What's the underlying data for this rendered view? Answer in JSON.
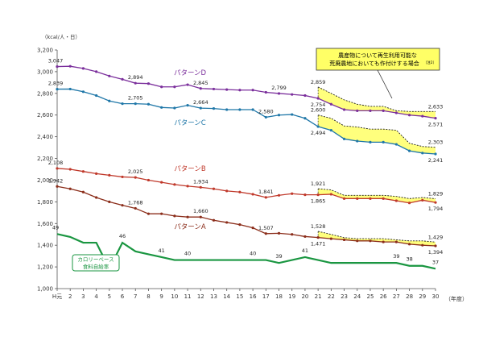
{
  "chart_data": {
    "type": "line",
    "y_unit_label": "（kcal/人・日）",
    "x_unit_label": "（年度）",
    "x": [
      "H元",
      "2",
      "3",
      "4",
      "5",
      "6",
      "7",
      "8",
      "9",
      "10",
      "11",
      "12",
      "13",
      "14",
      "15",
      "16",
      "17",
      "18",
      "19",
      "20",
      "21",
      "22",
      "23",
      "24",
      "25",
      "26",
      "27",
      "28",
      "29",
      "30"
    ],
    "ylim": [
      1000,
      3200
    ],
    "yticks": [
      1000,
      1200,
      1400,
      1600,
      1800,
      2000,
      2200,
      2400,
      2600,
      2800,
      3000,
      3200
    ],
    "ytick_labels": [
      "1,000",
      "1,200",
      "1,400",
      "1,600",
      "1,800",
      "2,000",
      "2,200",
      "2,400",
      "2,600",
      "2,800",
      "3,000",
      "3,200"
    ],
    "grid": false,
    "series": [
      {
        "name": "パターンD",
        "color": "#7b2f9c",
        "values": [
          3047,
          3050,
          3030,
          3000,
          2960,
          2930,
          2894,
          2890,
          2860,
          2860,
          2880,
          2845,
          2840,
          2835,
          2830,
          2830,
          2810,
          2799,
          2790,
          2780,
          2754,
          2700,
          2650,
          2640,
          2640,
          2640,
          2620,
          2600,
          2590,
          2571
        ]
      },
      {
        "name": "パターンC",
        "color": "#1f77a8",
        "values": [
          2839,
          2840,
          2815,
          2780,
          2730,
          2705,
          2705,
          2700,
          2670,
          2665,
          2690,
          2664,
          2660,
          2650,
          2650,
          2650,
          2580,
          2600,
          2605,
          2570,
          2494,
          2460,
          2380,
          2360,
          2350,
          2350,
          2330,
          2270,
          2250,
          2241
        ]
      },
      {
        "name": "パターンB",
        "color": "#c0392b",
        "values": [
          2108,
          2100,
          2080,
          2060,
          2045,
          2030,
          2025,
          2000,
          1980,
          1960,
          1945,
          1934,
          1920,
          1900,
          1890,
          1870,
          1841,
          1860,
          1875,
          1865,
          1865,
          1870,
          1830,
          1830,
          1830,
          1830,
          1810,
          1790,
          1815,
          1794
        ]
      },
      {
        "name": "パターンA",
        "color": "#8b2d1a",
        "values": [
          1942,
          1920,
          1890,
          1840,
          1800,
          1768,
          1740,
          1690,
          1690,
          1670,
          1660,
          1660,
          1630,
          1610,
          1590,
          1560,
          1507,
          1510,
          1500,
          1480,
          1471,
          1460,
          1450,
          1440,
          1440,
          1430,
          1430,
          1410,
          1400,
          1394
        ]
      },
      {
        "name": "カロリーベース食料自給率",
        "color": "#1a9641",
        "values": [
          49,
          48,
          46,
          46,
          37,
          46,
          43,
          42,
          41,
          40,
          40,
          40,
          40,
          40,
          40,
          40,
          40,
          39,
          40,
          41,
          40,
          39,
          39,
          39,
          39,
          39,
          39,
          38,
          38,
          37
        ]
      }
    ],
    "bands": [
      {
        "series_top_values": [
          2859,
          2800,
          2740,
          2700,
          2680,
          2680,
          2640,
          2633,
          2633,
          2633
        ],
        "series_bottom_values": [
          2754,
          2700,
          2650,
          2640,
          2640,
          2640,
          2620,
          2600,
          2590,
          2571
        ]
      },
      {
        "series_top_values": [
          2600,
          2570,
          2500,
          2490,
          2470,
          2470,
          2460,
          2340,
          2310,
          2303
        ],
        "series_bottom_values": [
          2494,
          2460,
          2380,
          2360,
          2350,
          2350,
          2330,
          2270,
          2250,
          2241
        ]
      },
      {
        "series_top_values": [
          1921,
          1910,
          1860,
          1860,
          1860,
          1860,
          1850,
          1830,
          1840,
          1829
        ],
        "series_bottom_values": [
          1865,
          1870,
          1830,
          1830,
          1830,
          1830,
          1810,
          1790,
          1815,
          1794
        ]
      },
      {
        "series_top_values": [
          1528,
          1500,
          1470,
          1460,
          1460,
          1460,
          1450,
          1440,
          1440,
          1429
        ],
        "series_bottom_values": [
          1471,
          1460,
          1450,
          1440,
          1440,
          1430,
          1430,
          1410,
          1400,
          1394
        ]
      }
    ],
    "band_start_index": 20,
    "data_labels": [
      {
        "series": 0,
        "index": 0,
        "text": "3,047"
      },
      {
        "series": 0,
        "index": 6,
        "text": "2,894"
      },
      {
        "series": 0,
        "index": 11,
        "text": "2,845"
      },
      {
        "series": 0,
        "index": 17,
        "text": "2,799"
      },
      {
        "series": 0,
        "index": 20,
        "text": "2,859",
        "above_value": 2859
      },
      {
        "series": 0,
        "index": 20,
        "text": "2,754"
      },
      {
        "series": 0,
        "index": 29,
        "text": "2,633",
        "above_value": 2633
      },
      {
        "series": 0,
        "index": 29,
        "text": "2,571"
      },
      {
        "series": 1,
        "index": 0,
        "text": "2,839"
      },
      {
        "series": 1,
        "index": 6,
        "text": "2,705"
      },
      {
        "series": 1,
        "index": 11,
        "text": "2,664"
      },
      {
        "series": 1,
        "index": 16,
        "text": "2,580"
      },
      {
        "series": 1,
        "index": 20,
        "text": "2,600",
        "above_value": 2600
      },
      {
        "series": 1,
        "index": 20,
        "text": "2,494"
      },
      {
        "series": 1,
        "index": 29,
        "text": "2,303",
        "above_value": 2303
      },
      {
        "series": 1,
        "index": 29,
        "text": "2,241"
      },
      {
        "series": 2,
        "index": 0,
        "text": "2,108"
      },
      {
        "series": 2,
        "index": 6,
        "text": "2,025"
      },
      {
        "series": 2,
        "index": 11,
        "text": "1,934"
      },
      {
        "series": 2,
        "index": 16,
        "text": "1,841"
      },
      {
        "series": 2,
        "index": 20,
        "text": "1,921",
        "above_value": 1921
      },
      {
        "series": 2,
        "index": 20,
        "text": "1,865"
      },
      {
        "series": 2,
        "index": 29,
        "text": "1,829",
        "above_value": 1829
      },
      {
        "series": 2,
        "index": 29,
        "text": "1,794"
      },
      {
        "series": 3,
        "index": 0,
        "text": "1,942"
      },
      {
        "series": 3,
        "index": 6,
        "text": "1,768"
      },
      {
        "series": 3,
        "index": 11,
        "text": "1,660"
      },
      {
        "series": 3,
        "index": 16,
        "text": "1,507"
      },
      {
        "series": 3,
        "index": 20,
        "text": "1,528",
        "above_value": 1528
      },
      {
        "series": 3,
        "index": 20,
        "text": "1,471"
      },
      {
        "series": 3,
        "index": 29,
        "text": "1,429",
        "above_value": 1429
      },
      {
        "series": 3,
        "index": 29,
        "text": "1,394"
      },
      {
        "series": 4,
        "index": 0,
        "text": "49"
      },
      {
        "series": 4,
        "index": 5,
        "text": "46"
      },
      {
        "series": 4,
        "index": 8,
        "text": "41"
      },
      {
        "series": 4,
        "index": 10,
        "text": "40"
      },
      {
        "series": 4,
        "index": 15,
        "text": "40"
      },
      {
        "series": 4,
        "index": 17,
        "text": "39"
      },
      {
        "series": 4,
        "index": 19,
        "text": "41"
      },
      {
        "series": 4,
        "index": 26,
        "text": "39"
      },
      {
        "series": 4,
        "index": 27,
        "text": "38"
      },
      {
        "series": 4,
        "index": 29,
        "text": "37"
      }
    ],
    "series_labels": [
      {
        "series": 0,
        "text": "パターンD"
      },
      {
        "series": 1,
        "text": "パターンC"
      },
      {
        "series": 2,
        "text": "パターンB"
      },
      {
        "series": 3,
        "text": "パターンA"
      }
    ],
    "callout": {
      "lines": [
        "農産物について再生利用可能な",
        "荒廃農地においても作付けする場合"
      ],
      "note": "（注2）",
      "fill": "#ffff66"
    },
    "self_sufficiency_box": {
      "lines": [
        "カロリーベース",
        "食料自給率"
      ]
    }
  }
}
